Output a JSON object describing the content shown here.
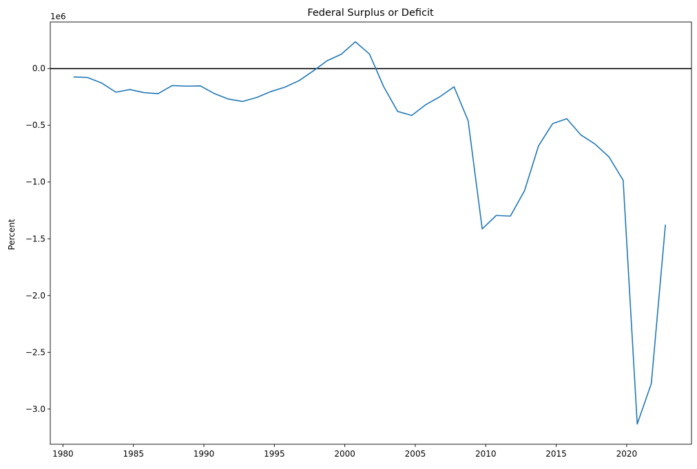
{
  "chart_data": {
    "type": "line",
    "title": "Federal Surplus or Deficit",
    "xlabel": "",
    "ylabel": "Percent",
    "y_offset_text": "1e6",
    "x_ticks": [
      1980,
      1985,
      1990,
      1995,
      2000,
      2005,
      2010,
      2015,
      2020
    ],
    "x_tick_labels": [
      "1980",
      "1985",
      "1990",
      "1995",
      "2000",
      "2005",
      "2010",
      "2015",
      "2020"
    ],
    "y_ticks": [
      0.0,
      -0.5,
      -1.0,
      -1.5,
      -2.0,
      -2.5,
      -3.0
    ],
    "y_tick_labels": [
      "0.0",
      "−0.5",
      "−1.0",
      "−1.5",
      "−2.0",
      "−2.5",
      "−3.0"
    ],
    "xlim": [
      1979.1,
      2024.6
    ],
    "ylim": [
      -3.31,
      0.41
    ],
    "grid": false,
    "reference_line": {
      "y": 0,
      "color": "#000000"
    },
    "series": [
      {
        "color": "#1f77b4",
        "x": [
          1980.75,
          1981.75,
          1982.75,
          1983.75,
          1984.75,
          1985.75,
          1986.75,
          1987.75,
          1988.75,
          1989.75,
          1990.75,
          1991.75,
          1992.75,
          1993.75,
          1994.75,
          1995.75,
          1996.75,
          1997.75,
          1998.75,
          1999.75,
          2000.75,
          2001.75,
          2002.75,
          2003.75,
          2004.75,
          2005.75,
          2006.75,
          2007.75,
          2008.75,
          2009.75,
          2010.75,
          2011.75,
          2012.75,
          2013.75,
          2014.75,
          2015.75,
          2016.75,
          2017.75,
          2018.75,
          2019.75,
          2020.75,
          2021.75,
          2022.75
        ],
        "y": [
          -0.074,
          -0.079,
          -0.128,
          -0.208,
          -0.185,
          -0.212,
          -0.221,
          -0.15,
          -0.155,
          -0.153,
          -0.221,
          -0.269,
          -0.29,
          -0.255,
          -0.203,
          -0.164,
          -0.107,
          -0.022,
          0.069,
          0.126,
          0.236,
          0.128,
          -0.158,
          -0.378,
          -0.413,
          -0.318,
          -0.248,
          -0.161,
          -0.459,
          -1.413,
          -1.294,
          -1.3,
          -1.077,
          -0.68,
          -0.485,
          -0.442,
          -0.585,
          -0.665,
          -0.779,
          -0.984,
          -3.132,
          -2.775,
          -1.375
        ]
      }
    ]
  }
}
